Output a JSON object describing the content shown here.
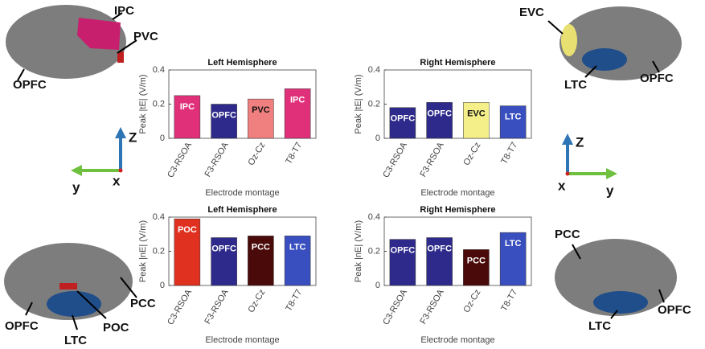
{
  "chart_data": [
    {
      "type": "bar",
      "title": "Left Hemisphere",
      "ylabel": "Peak |tE| (V/m)",
      "xlabel": "Electrode montage",
      "categories": [
        "C3-RSOA",
        "F3-RSOA",
        "Oz-Cz",
        "T8-T7"
      ],
      "values": [
        0.25,
        0.2,
        0.23,
        0.29
      ],
      "bar_labels": [
        "IPC",
        "OPFC",
        "PVC",
        "IPC"
      ],
      "colors": [
        "#e0307a",
        "#2e2a8c",
        "#f08080",
        "#e0307a"
      ],
      "ylim": [
        0,
        0.4
      ],
      "yticks": [
        0,
        0.2,
        0.4
      ]
    },
    {
      "type": "bar",
      "title": "Right Hemisphere",
      "ylabel": "Peak |tE| (V/m)",
      "xlabel": "Electrode montage",
      "categories": [
        "C3-RSOA",
        "F3-RSOA",
        "Oz-Cz",
        "T8-T7"
      ],
      "values": [
        0.18,
        0.21,
        0.21,
        0.19
      ],
      "bar_labels": [
        "OPFC",
        "OPFC",
        "EVC",
        "LTC"
      ],
      "colors": [
        "#2e2a8c",
        "#2e2a8c",
        "#f5ef8a",
        "#3a4fbf"
      ],
      "ylim": [
        0,
        0.4
      ],
      "yticks": [
        0,
        0.2,
        0.4
      ]
    },
    {
      "type": "bar",
      "title": "Left Hemisphere",
      "ylabel": "Peak |nE| (V/m)",
      "xlabel": "Electrode montage",
      "categories": [
        "C3-RSOA",
        "F3-RSOA",
        "Oz-Cz",
        "T8-T7"
      ],
      "values": [
        0.39,
        0.28,
        0.29,
        0.29
      ],
      "bar_labels": [
        "POC",
        "OPFC",
        "PCC",
        "LTC"
      ],
      "colors": [
        "#e03020",
        "#2e2a8c",
        "#4a0a0a",
        "#3a4fbf"
      ],
      "ylim": [
        0,
        0.4
      ],
      "yticks": [
        0,
        0.2,
        0.4
      ]
    },
    {
      "type": "bar",
      "title": "Right Hemisphere",
      "ylabel": "Peak |nE| (V/m)",
      "xlabel": "Electrode montage",
      "categories": [
        "C3-RSOA",
        "F3-RSOA",
        "Oz-Cz",
        "T8-T7"
      ],
      "values": [
        0.27,
        0.28,
        0.21,
        0.31
      ],
      "bar_labels": [
        "OPFC",
        "OPFC",
        "PCC",
        "LTC"
      ],
      "colors": [
        "#2e2a8c",
        "#2e2a8c",
        "#4a0a0a",
        "#3a4fbf"
      ],
      "ylim": [
        0,
        0.4
      ],
      "yticks": [
        0,
        0.2,
        0.4
      ]
    }
  ],
  "brains": [
    {
      "labels": [
        "IPC",
        "PVC",
        "OPFC"
      ]
    },
    {
      "labels": [
        "EVC",
        "LTC",
        "OPFC"
      ]
    },
    {
      "labels": [
        "PCC",
        "POC",
        "OPFC",
        "LTC"
      ]
    },
    {
      "labels": [
        "PCC",
        "OPFC",
        "LTC"
      ]
    }
  ],
  "axes_glyphs": [
    {
      "z": "Z",
      "y": "y",
      "x": "x"
    },
    {
      "z": "Z",
      "y": "y",
      "x": "x"
    }
  ]
}
